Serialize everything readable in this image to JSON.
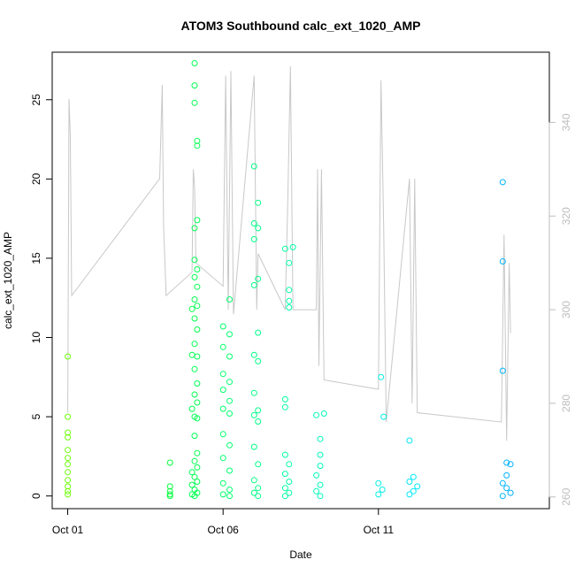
{
  "chart_data": {
    "type": "scatter",
    "title": "ATOM3 Southbound calc_ext_1020_AMP",
    "xlabel": "Date",
    "ylabel": "calc_ext_1020_AMP",
    "xlim": [
      "2015-09-30T12:00",
      "2015-10-16T12:00"
    ],
    "ylim": [
      -0.8,
      28
    ],
    "y2lim": [
      257.5,
      355
    ],
    "x_ticks": [
      {
        "label": "Oct 01",
        "date": "2015-10-01"
      },
      {
        "label": "Oct 06",
        "date": "2015-10-06"
      },
      {
        "label": "Oct 11",
        "date": "2015-10-11"
      }
    ],
    "y_ticks": [
      0,
      5,
      10,
      15,
      20,
      25
    ],
    "y2_ticks": [
      260,
      280,
      300,
      320,
      340
    ],
    "point_color_gradient": [
      "#7cff00",
      "#00ff40",
      "#00ffb0",
      "#00e5ff",
      "#0099ff"
    ],
    "line_color": "#c8c8c8",
    "series": [
      {
        "points": [
          [
            "2015-10-01T00:00",
            8.8
          ],
          [
            "2015-10-01T00:00",
            5.0
          ],
          [
            "2015-10-01T00:00",
            4.0
          ],
          [
            "2015-10-01T00:00",
            3.7
          ],
          [
            "2015-10-01T00:00",
            2.9
          ],
          [
            "2015-10-01T00:00",
            2.4
          ],
          [
            "2015-10-01T00:00",
            2.0
          ],
          [
            "2015-10-01T00:00",
            1.5
          ],
          [
            "2015-10-01T00:00",
            1.0
          ],
          [
            "2015-10-01T00:00",
            0.6
          ],
          [
            "2015-10-01T00:00",
            0.3
          ],
          [
            "2015-10-01T00:00",
            0.1
          ],
          [
            "2015-10-04T07:00",
            2.1
          ],
          [
            "2015-10-04T07:00",
            0.6
          ],
          [
            "2015-10-04T07:00",
            0.3
          ],
          [
            "2015-10-04T07:00",
            0.1
          ],
          [
            "2015-10-04T07:00",
            0.0
          ],
          [
            "2015-10-05T02:00",
            27.3
          ],
          [
            "2015-10-05T02:00",
            25.9
          ],
          [
            "2015-10-05T02:00",
            24.8
          ],
          [
            "2015-10-05T04:00",
            22.4
          ],
          [
            "2015-10-05T04:00",
            22.1
          ],
          [
            "2015-10-05T02:00",
            16.9
          ],
          [
            "2015-10-05T04:00",
            17.4
          ],
          [
            "2015-10-05T02:00",
            14.9
          ],
          [
            "2015-10-05T04:00",
            14.3
          ],
          [
            "2015-10-05T02:00",
            13.8
          ],
          [
            "2015-10-05T04:00",
            13.2
          ],
          [
            "2015-10-05T02:00",
            12.4
          ],
          [
            "2015-10-05T04:00",
            12.0
          ],
          [
            "2015-10-05T00:00",
            11.8
          ],
          [
            "2015-10-05T02:00",
            11.2
          ],
          [
            "2015-10-05T04:00",
            10.5
          ],
          [
            "2015-10-05T02:00",
            9.6
          ],
          [
            "2015-10-05T04:00",
            8.8
          ],
          [
            "2015-10-05T00:00",
            8.9
          ],
          [
            "2015-10-05T02:00",
            8.0
          ],
          [
            "2015-10-05T04:00",
            7.1
          ],
          [
            "2015-10-05T02:00",
            6.4
          ],
          [
            "2015-10-05T04:00",
            5.9
          ],
          [
            "2015-10-05T00:00",
            5.5
          ],
          [
            "2015-10-05T02:00",
            5.0
          ],
          [
            "2015-10-05T04:00",
            4.9
          ],
          [
            "2015-10-05T02:00",
            3.8
          ],
          [
            "2015-10-05T04:00",
            2.7
          ],
          [
            "2015-10-05T02:00",
            2.2
          ],
          [
            "2015-10-05T04:00",
            1.8
          ],
          [
            "2015-10-05T00:00",
            1.5
          ],
          [
            "2015-10-05T02:00",
            1.2
          ],
          [
            "2015-10-05T04:00",
            0.9
          ],
          [
            "2015-10-05T00:00",
            0.7
          ],
          [
            "2015-10-05T02:00",
            0.4
          ],
          [
            "2015-10-05T04:00",
            0.2
          ],
          [
            "2015-10-05T00:00",
            0.1
          ],
          [
            "2015-10-05T02:00",
            0.0
          ],
          [
            "2015-10-06T05:00",
            12.4
          ],
          [
            "2015-10-06T00:00",
            10.7
          ],
          [
            "2015-10-06T05:00",
            10.2
          ],
          [
            "2015-10-06T00:00",
            9.4
          ],
          [
            "2015-10-06T05:00",
            8.8
          ],
          [
            "2015-10-06T00:00",
            7.7
          ],
          [
            "2015-10-06T05:00",
            7.2
          ],
          [
            "2015-10-06T00:00",
            6.7
          ],
          [
            "2015-10-06T05:00",
            6.0
          ],
          [
            "2015-10-06T00:00",
            5.5
          ],
          [
            "2015-10-06T05:00",
            5.2
          ],
          [
            "2015-10-06T00:00",
            3.9
          ],
          [
            "2015-10-06T05:00",
            3.2
          ],
          [
            "2015-10-06T00:00",
            2.4
          ],
          [
            "2015-10-06T05:00",
            1.6
          ],
          [
            "2015-10-06T00:00",
            0.8
          ],
          [
            "2015-10-06T05:00",
            0.4
          ],
          [
            "2015-10-06T00:00",
            0.1
          ],
          [
            "2015-10-06T05:00",
            0.0
          ],
          [
            "2015-10-07T00:00",
            20.8
          ],
          [
            "2015-10-07T03:00",
            18.5
          ],
          [
            "2015-10-07T00:00",
            17.2
          ],
          [
            "2015-10-07T03:00",
            16.9
          ],
          [
            "2015-10-07T00:00",
            16.2
          ],
          [
            "2015-10-07T03:00",
            13.7
          ],
          [
            "2015-10-07T00:00",
            13.3
          ],
          [
            "2015-10-07T03:00",
            10.3
          ],
          [
            "2015-10-07T00:00",
            8.9
          ],
          [
            "2015-10-07T03:00",
            8.5
          ],
          [
            "2015-10-07T00:00",
            6.5
          ],
          [
            "2015-10-07T03:00",
            5.4
          ],
          [
            "2015-10-07T00:00",
            5.1
          ],
          [
            "2015-10-07T03:00",
            4.7
          ],
          [
            "2015-10-07T00:00",
            3.1
          ],
          [
            "2015-10-07T03:00",
            2.0
          ],
          [
            "2015-10-07T00:00",
            1.0
          ],
          [
            "2015-10-07T03:00",
            0.5
          ],
          [
            "2015-10-07T00:00",
            0.2
          ],
          [
            "2015-10-07T03:00",
            0.0
          ],
          [
            "2015-10-08T00:00",
            15.6
          ],
          [
            "2015-10-08T06:00",
            15.7
          ],
          [
            "2015-10-08T03:00",
            14.7
          ],
          [
            "2015-10-08T03:00",
            13.0
          ],
          [
            "2015-10-08T03:00",
            12.3
          ],
          [
            "2015-10-08T03:00",
            11.9
          ],
          [
            "2015-10-08T00:00",
            6.1
          ],
          [
            "2015-10-08T00:00",
            5.6
          ],
          [
            "2015-10-08T00:00",
            2.6
          ],
          [
            "2015-10-08T03:00",
            2.0
          ],
          [
            "2015-10-08T00:00",
            1.4
          ],
          [
            "2015-10-08T03:00",
            0.9
          ],
          [
            "2015-10-08T00:00",
            0.5
          ],
          [
            "2015-10-08T03:00",
            0.2
          ],
          [
            "2015-10-08T00:00",
            0.0
          ],
          [
            "2015-10-09T00:00",
            5.1
          ],
          [
            "2015-10-09T06:00",
            5.2
          ],
          [
            "2015-10-09T03:00",
            3.6
          ],
          [
            "2015-10-09T03:00",
            2.6
          ],
          [
            "2015-10-09T03:00",
            1.9
          ],
          [
            "2015-10-09T00:00",
            1.3
          ],
          [
            "2015-10-09T03:00",
            0.7
          ],
          [
            "2015-10-09T00:00",
            0.3
          ],
          [
            "2015-10-09T03:00",
            0.0
          ],
          [
            "2015-10-11T02:00",
            7.5
          ],
          [
            "2015-10-11T04:00",
            5.0
          ],
          [
            "2015-10-11T00:00",
            0.8
          ],
          [
            "2015-10-11T03:00",
            0.4
          ],
          [
            "2015-10-11T00:00",
            0.1
          ],
          [
            "2015-10-12T00:00",
            3.5
          ],
          [
            "2015-10-12T03:00",
            1.2
          ],
          [
            "2015-10-12T00:00",
            0.9
          ],
          [
            "2015-10-12T06:00",
            0.6
          ],
          [
            "2015-10-12T03:00",
            0.3
          ],
          [
            "2015-10-12T00:00",
            0.1
          ],
          [
            "2015-10-15T00:00",
            19.8
          ],
          [
            "2015-10-15T00:00",
            14.8
          ],
          [
            "2015-10-15T00:00",
            7.9
          ],
          [
            "2015-10-15T03:00",
            2.1
          ],
          [
            "2015-10-15T06:00",
            2.0
          ],
          [
            "2015-10-15T03:00",
            1.3
          ],
          [
            "2015-10-15T00:00",
            0.8
          ],
          [
            "2015-10-15T03:00",
            0.5
          ],
          [
            "2015-10-15T06:00",
            0.2
          ],
          [
            "2015-10-15T00:00",
            0.0
          ]
        ]
      }
    ],
    "line": [
      [
        "2015-10-01T00:00",
        278
      ],
      [
        "2015-10-01T01:00",
        345
      ],
      [
        "2015-10-01T02:00",
        337
      ],
      [
        "2015-10-01T03:00",
        303
      ],
      [
        "2015-10-03T23:00",
        328
      ],
      [
        "2015-10-04T01:00",
        348
      ],
      [
        "2015-10-04T02:00",
        318
      ],
      [
        "2015-10-04T04:00",
        303
      ],
      [
        "2015-10-05T00:00",
        308
      ],
      [
        "2015-10-05T01:00",
        330
      ],
      [
        "2015-10-05T02:00",
        326
      ],
      [
        "2015-10-05T03:00",
        310
      ],
      [
        "2015-10-06T00:00",
        305
      ],
      [
        "2015-10-06T02:00",
        350
      ],
      [
        "2015-10-06T04:00",
        300
      ],
      [
        "2015-10-06T06:00",
        351
      ],
      [
        "2015-10-06T08:00",
        299
      ],
      [
        "2015-10-07T00:00",
        350
      ],
      [
        "2015-10-07T02:00",
        300
      ],
      [
        "2015-10-07T03:00",
        312
      ],
      [
        "2015-10-08T00:00",
        300
      ],
      [
        "2015-10-08T02:00",
        324
      ],
      [
        "2015-10-08T04:00",
        352
      ],
      [
        "2015-10-08T06:00",
        300
      ],
      [
        "2015-10-09T00:00",
        300
      ],
      [
        "2015-10-09T01:00",
        330
      ],
      [
        "2015-10-09T02:00",
        288
      ],
      [
        "2015-10-09T04:00",
        330
      ],
      [
        "2015-10-09T06:00",
        285
      ],
      [
        "2015-10-11T00:00",
        283
      ],
      [
        "2015-10-11T02:00",
        349
      ],
      [
        "2015-10-11T04:00",
        318
      ],
      [
        "2015-10-11T06:00",
        276
      ],
      [
        "2015-10-12T00:00",
        328
      ],
      [
        "2015-10-12T02:00",
        280
      ],
      [
        "2015-10-12T04:00",
        328
      ],
      [
        "2015-10-12T06:00",
        278
      ],
      [
        "2015-10-14T23:00",
        276
      ],
      [
        "2015-10-15T01:00",
        316
      ],
      [
        "2015-10-15T03:00",
        272
      ],
      [
        "2015-10-15T05:00",
        310
      ],
      [
        "2015-10-15T06:00",
        295
      ]
    ]
  }
}
